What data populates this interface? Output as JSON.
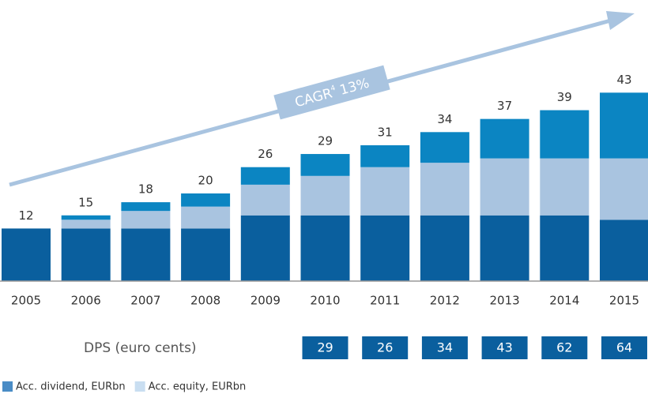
{
  "chart_data": {
    "type": "bar",
    "stacked": true,
    "categories": [
      "2005",
      "2006",
      "2007",
      "2008",
      "2009",
      "2010",
      "2011",
      "2012",
      "2013",
      "2014",
      "2015"
    ],
    "series": [
      {
        "color": "#0a5f9e",
        "values": [
          12,
          12,
          12,
          12,
          15,
          15,
          15,
          15,
          15,
          15,
          14
        ]
      },
      {
        "name": "Acc. equity, EURbn",
        "color": "#a9c4e0",
        "values": [
          0,
          2,
          4,
          5,
          7,
          9,
          11,
          12,
          13,
          13,
          14
        ]
      },
      {
        "name": "Acc. dividend, EURbn",
        "color": "#0b85c2",
        "values": [
          0,
          1,
          2,
          3,
          4,
          5,
          5,
          7,
          9,
          11,
          15
        ]
      }
    ],
    "totals": [
      12,
      15,
      18,
      20,
      26,
      29,
      31,
      34,
      37,
      39,
      43
    ],
    "annotation": {
      "text": "CAGR",
      "superscript": "4",
      "value_text": "13%"
    },
    "dps": {
      "label": "DPS (euro cents)",
      "color": "#0a5f9e",
      "values": [
        null,
        null,
        null,
        null,
        null,
        29,
        26,
        34,
        43,
        62,
        64
      ]
    }
  }
}
